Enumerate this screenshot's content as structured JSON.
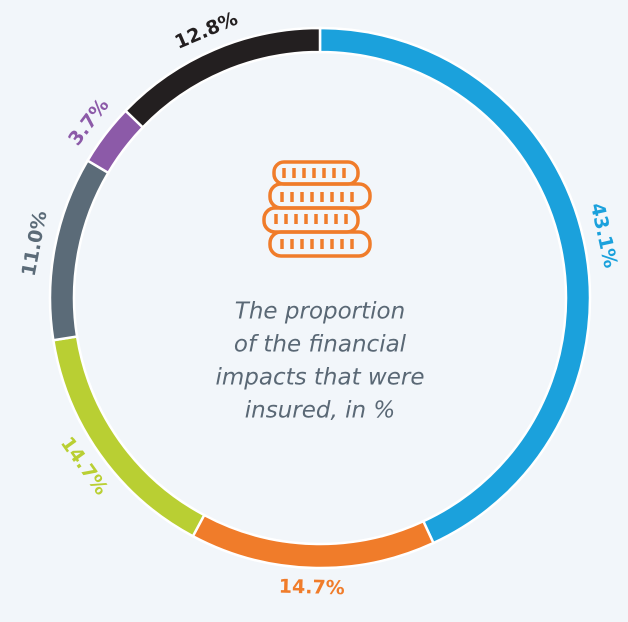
{
  "chart_data": {
    "type": "donut",
    "center_text": [
      "The proportion",
      "of the financial",
      "impacts that were",
      "insured, in %"
    ],
    "values": [
      43.1,
      14.7,
      14.7,
      11.0,
      3.7,
      12.8
    ],
    "value_labels": [
      "43.1%",
      "14.7%",
      "14.7%",
      "11.0%",
      "3.7%",
      "12.8%"
    ],
    "colors": [
      "#1ba1dc",
      "#f07c2a",
      "#b9cf33",
      "#5b6b78",
      "#8c5aa8",
      "#231f20"
    ]
  }
}
